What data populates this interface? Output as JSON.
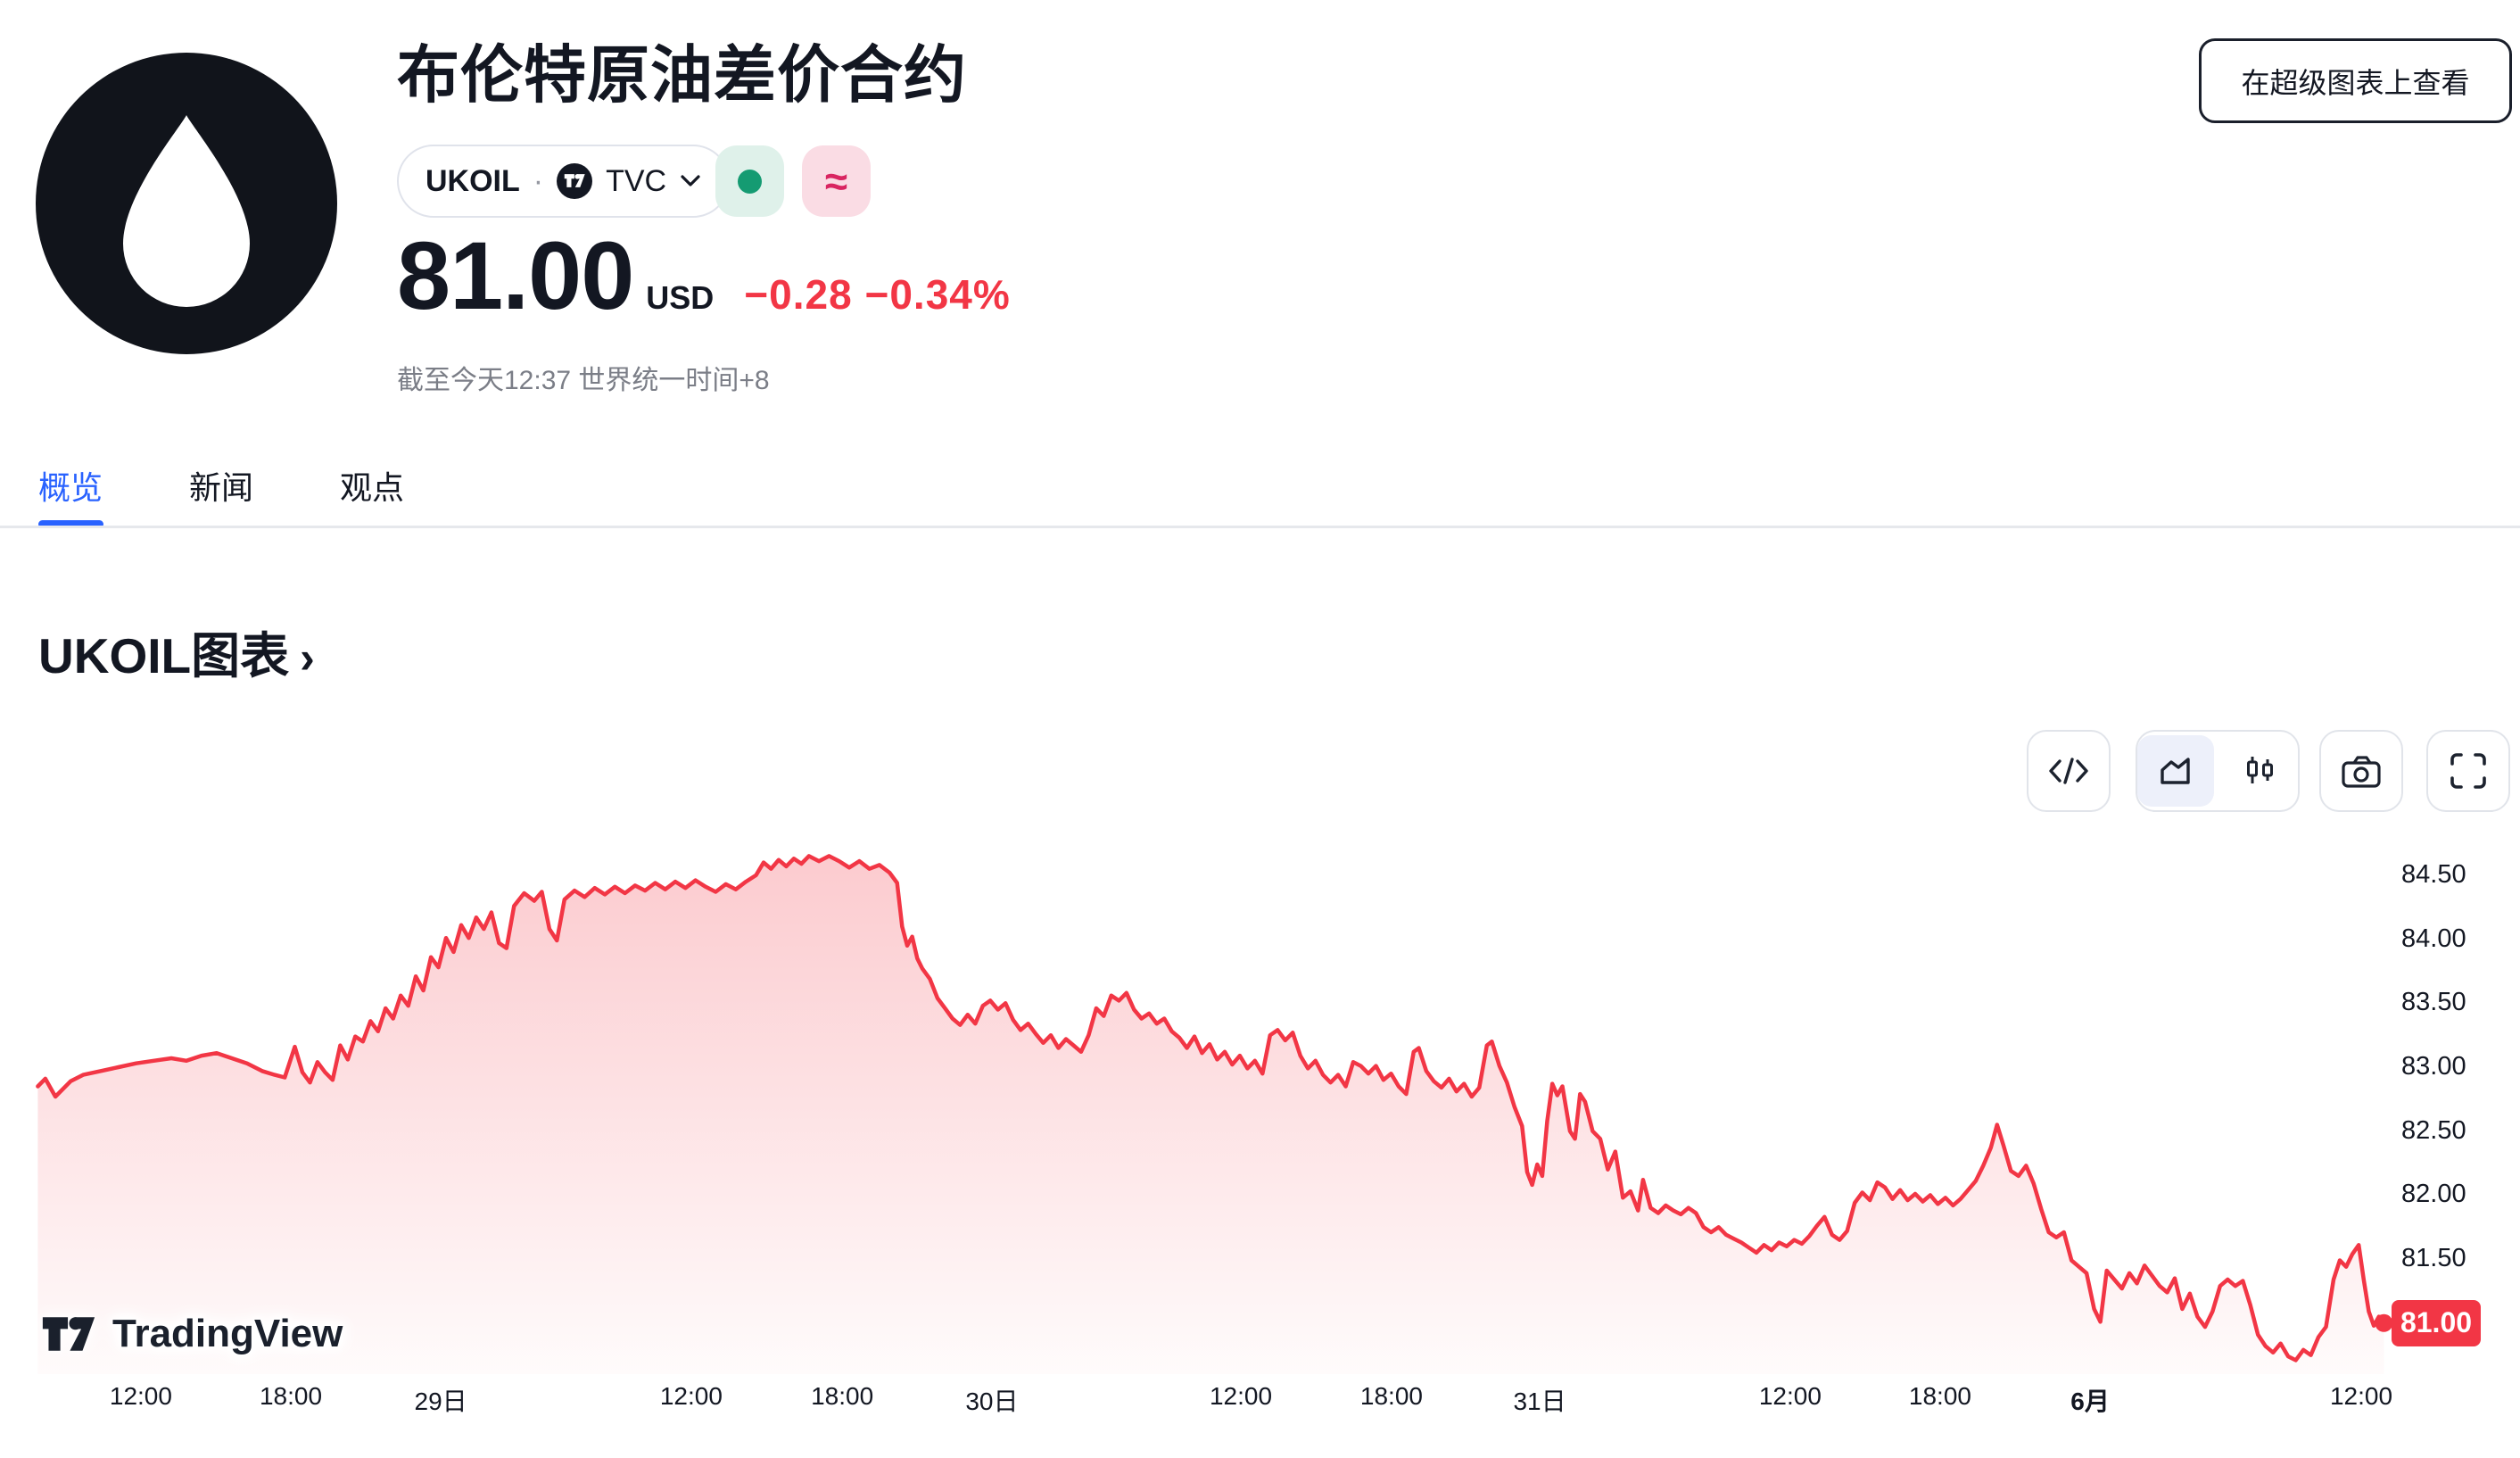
{
  "header": {
    "title": "布伦特原油差价合约",
    "view_button": "在超级图表上查看",
    "symbol_chip": {
      "code": "UKOIL",
      "separator": "·",
      "source": "TVC"
    },
    "badges": {
      "market_dot_color": "#159B72",
      "approx_symbol": "≈"
    },
    "price": {
      "value": "81.00",
      "currency": "USD",
      "change": "−0.28",
      "change_percent": "−0.34%",
      "change_color": "#F23645"
    },
    "as_of": "截至今天12:37 世界统一时间+8"
  },
  "tabs": [
    {
      "label": "概览",
      "active": true
    },
    {
      "label": "新闻",
      "active": false
    },
    {
      "label": "观点",
      "active": false
    }
  ],
  "section": {
    "title": "UKOIL图表",
    "chevron": "›"
  },
  "toolbar": {
    "icons": [
      "code",
      "area-chart",
      "candlestick",
      "camera",
      "fullscreen"
    ],
    "active": "area-chart"
  },
  "watermark": "TradingView",
  "chart_data": {
    "type": "area",
    "symbol": "UKOIL",
    "currency": "USD",
    "line_color": "#F23645",
    "fill_top_color": "rgba(242,54,69,0.26)",
    "fill_bottom_color": "rgba(242,54,69,0.02)",
    "grid": false,
    "legend": "none",
    "last_price": 81.0,
    "last_price_label": "81.00",
    "y_axis_side": "right",
    "y_ticks": [
      84.5,
      84.0,
      83.5,
      83.0,
      82.5,
      82.0,
      81.5
    ],
    "ylim": [
      80.55,
      84.85
    ],
    "x_ticks": [
      {
        "label": "12:00",
        "pos": 0.0559,
        "bold": false
      },
      {
        "label": "18:00",
        "pos": 0.1154,
        "bold": false
      },
      {
        "label": "29日",
        "pos": 0.1749,
        "bold": false
      },
      {
        "label": "12:00",
        "pos": 0.2743,
        "bold": false
      },
      {
        "label": "18:00",
        "pos": 0.3342,
        "bold": false
      },
      {
        "label": "30日",
        "pos": 0.3936,
        "bold": false
      },
      {
        "label": "12:00",
        "pos": 0.4924,
        "bold": false
      },
      {
        "label": "18:00",
        "pos": 0.5522,
        "bold": false
      },
      {
        "label": "31日",
        "pos": 0.611,
        "bold": false
      },
      {
        "label": "12:00",
        "pos": 0.7104,
        "bold": false
      },
      {
        "label": "18:00",
        "pos": 0.7699,
        "bold": false
      },
      {
        "label": "6月",
        "pos": 0.8294,
        "bold": true
      },
      {
        "label": "12:00",
        "pos": 0.937,
        "bold": false
      }
    ],
    "series": [
      [
        0.015,
        82.85
      ],
      [
        0.018,
        82.91
      ],
      [
        0.022,
        82.77
      ],
      [
        0.028,
        82.89
      ],
      [
        0.033,
        82.94
      ],
      [
        0.04,
        82.97
      ],
      [
        0.047,
        83.0
      ],
      [
        0.054,
        83.03
      ],
      [
        0.061,
        83.05
      ],
      [
        0.068,
        83.07
      ],
      [
        0.074,
        83.05
      ],
      [
        0.08,
        83.09
      ],
      [
        0.086,
        83.11
      ],
      [
        0.092,
        83.07
      ],
      [
        0.098,
        83.03
      ],
      [
        0.104,
        82.97
      ],
      [
        0.109,
        82.94
      ],
      [
        0.113,
        82.92
      ],
      [
        0.117,
        83.16
      ],
      [
        0.12,
        82.96
      ],
      [
        0.123,
        82.88
      ],
      [
        0.126,
        83.04
      ],
      [
        0.129,
        82.96
      ],
      [
        0.132,
        82.9
      ],
      [
        0.135,
        83.17
      ],
      [
        0.138,
        83.06
      ],
      [
        0.141,
        83.24
      ],
      [
        0.144,
        83.2
      ],
      [
        0.147,
        83.36
      ],
      [
        0.15,
        83.28
      ],
      [
        0.153,
        83.46
      ],
      [
        0.156,
        83.38
      ],
      [
        0.159,
        83.56
      ],
      [
        0.162,
        83.48
      ],
      [
        0.165,
        83.71
      ],
      [
        0.168,
        83.6
      ],
      [
        0.171,
        83.86
      ],
      [
        0.174,
        83.78
      ],
      [
        0.177,
        84.01
      ],
      [
        0.18,
        83.9
      ],
      [
        0.183,
        84.11
      ],
      [
        0.186,
        84.01
      ],
      [
        0.189,
        84.17
      ],
      [
        0.192,
        84.08
      ],
      [
        0.195,
        84.21
      ],
      [
        0.198,
        83.97
      ],
      [
        0.201,
        83.93
      ],
      [
        0.204,
        84.26
      ],
      [
        0.208,
        84.36
      ],
      [
        0.212,
        84.3
      ],
      [
        0.215,
        84.37
      ],
      [
        0.218,
        84.08
      ],
      [
        0.221,
        83.99
      ],
      [
        0.224,
        84.31
      ],
      [
        0.228,
        84.38
      ],
      [
        0.232,
        84.33
      ],
      [
        0.236,
        84.4
      ],
      [
        0.24,
        84.35
      ],
      [
        0.244,
        84.41
      ],
      [
        0.248,
        84.36
      ],
      [
        0.252,
        84.42
      ],
      [
        0.256,
        84.38
      ],
      [
        0.26,
        84.44
      ],
      [
        0.264,
        84.39
      ],
      [
        0.268,
        84.45
      ],
      [
        0.272,
        84.4
      ],
      [
        0.276,
        84.46
      ],
      [
        0.28,
        84.41
      ],
      [
        0.284,
        84.37
      ],
      [
        0.288,
        84.43
      ],
      [
        0.292,
        84.39
      ],
      [
        0.296,
        84.45
      ],
      [
        0.3,
        84.5
      ],
      [
        0.303,
        84.6
      ],
      [
        0.306,
        84.55
      ],
      [
        0.309,
        84.62
      ],
      [
        0.312,
        84.57
      ],
      [
        0.315,
        84.63
      ],
      [
        0.318,
        84.59
      ],
      [
        0.321,
        84.65
      ],
      [
        0.325,
        84.61
      ],
      [
        0.329,
        84.65
      ],
      [
        0.333,
        84.61
      ],
      [
        0.337,
        84.56
      ],
      [
        0.341,
        84.61
      ],
      [
        0.345,
        84.55
      ],
      [
        0.349,
        84.58
      ],
      [
        0.353,
        84.52
      ],
      [
        0.356,
        84.44
      ],
      [
        0.358,
        84.1
      ],
      [
        0.36,
        83.95
      ],
      [
        0.362,
        84.02
      ],
      [
        0.364,
        83.85
      ],
      [
        0.366,
        83.77
      ],
      [
        0.369,
        83.69
      ],
      [
        0.372,
        83.54
      ],
      [
        0.375,
        83.46
      ],
      [
        0.378,
        83.38
      ],
      [
        0.381,
        83.33
      ],
      [
        0.384,
        83.41
      ],
      [
        0.387,
        83.34
      ],
      [
        0.39,
        83.48
      ],
      [
        0.393,
        83.52
      ],
      [
        0.396,
        83.45
      ],
      [
        0.399,
        83.5
      ],
      [
        0.402,
        83.37
      ],
      [
        0.405,
        83.29
      ],
      [
        0.408,
        83.34
      ],
      [
        0.411,
        83.26
      ],
      [
        0.414,
        83.19
      ],
      [
        0.417,
        83.25
      ],
      [
        0.42,
        83.15
      ],
      [
        0.423,
        83.22
      ],
      [
        0.426,
        83.17
      ],
      [
        0.429,
        83.12
      ],
      [
        0.432,
        83.25
      ],
      [
        0.435,
        83.46
      ],
      [
        0.438,
        83.4
      ],
      [
        0.441,
        83.56
      ],
      [
        0.444,
        83.52
      ],
      [
        0.447,
        83.58
      ],
      [
        0.45,
        83.45
      ],
      [
        0.453,
        83.38
      ],
      [
        0.456,
        83.42
      ],
      [
        0.459,
        83.34
      ],
      [
        0.462,
        83.38
      ],
      [
        0.465,
        83.28
      ],
      [
        0.468,
        83.23
      ],
      [
        0.471,
        83.15
      ],
      [
        0.474,
        83.24
      ],
      [
        0.477,
        83.11
      ],
      [
        0.48,
        83.18
      ],
      [
        0.483,
        83.06
      ],
      [
        0.486,
        83.12
      ],
      [
        0.489,
        83.02
      ],
      [
        0.492,
        83.09
      ],
      [
        0.495,
        82.99
      ],
      [
        0.498,
        83.05
      ],
      [
        0.501,
        82.95
      ],
      [
        0.504,
        83.25
      ],
      [
        0.507,
        83.29
      ],
      [
        0.51,
        83.21
      ],
      [
        0.513,
        83.27
      ],
      [
        0.516,
        83.09
      ],
      [
        0.519,
        82.99
      ],
      [
        0.522,
        83.05
      ],
      [
        0.525,
        82.94
      ],
      [
        0.528,
        82.88
      ],
      [
        0.531,
        82.94
      ],
      [
        0.534,
        82.85
      ],
      [
        0.537,
        83.04
      ],
      [
        0.54,
        83.01
      ],
      [
        0.543,
        82.95
      ],
      [
        0.546,
        83.01
      ],
      [
        0.549,
        82.9
      ],
      [
        0.552,
        82.95
      ],
      [
        0.555,
        82.85
      ],
      [
        0.558,
        82.79
      ],
      [
        0.561,
        83.12
      ],
      [
        0.563,
        83.15
      ],
      [
        0.566,
        82.97
      ],
      [
        0.569,
        82.89
      ],
      [
        0.572,
        82.84
      ],
      [
        0.575,
        82.91
      ],
      [
        0.578,
        82.81
      ],
      [
        0.581,
        82.87
      ],
      [
        0.584,
        82.77
      ],
      [
        0.587,
        82.84
      ],
      [
        0.59,
        83.17
      ],
      [
        0.592,
        83.2
      ],
      [
        0.595,
        83.01
      ],
      [
        0.598,
        82.88
      ],
      [
        0.601,
        82.69
      ],
      [
        0.604,
        82.54
      ],
      [
        0.606,
        82.18
      ],
      [
        0.608,
        82.08
      ],
      [
        0.61,
        82.24
      ],
      [
        0.612,
        82.15
      ],
      [
        0.614,
        82.58
      ],
      [
        0.616,
        82.87
      ],
      [
        0.618,
        82.78
      ],
      [
        0.62,
        82.85
      ],
      [
        0.623,
        82.5
      ],
      [
        0.625,
        82.44
      ],
      [
        0.627,
        82.79
      ],
      [
        0.629,
        82.73
      ],
      [
        0.632,
        82.5
      ],
      [
        0.635,
        82.44
      ],
      [
        0.638,
        82.2
      ],
      [
        0.641,
        82.34
      ],
      [
        0.644,
        81.98
      ],
      [
        0.647,
        82.03
      ],
      [
        0.65,
        81.88
      ],
      [
        0.652,
        82.12
      ],
      [
        0.655,
        81.9
      ],
      [
        0.658,
        81.86
      ],
      [
        0.661,
        81.92
      ],
      [
        0.664,
        81.88
      ],
      [
        0.667,
        81.85
      ],
      [
        0.67,
        81.9
      ],
      [
        0.673,
        81.86
      ],
      [
        0.676,
        81.75
      ],
      [
        0.679,
        81.71
      ],
      [
        0.682,
        81.75
      ],
      [
        0.685,
        81.69
      ],
      [
        0.688,
        81.66
      ],
      [
        0.691,
        81.63
      ],
      [
        0.694,
        81.59
      ],
      [
        0.697,
        81.55
      ],
      [
        0.7,
        81.61
      ],
      [
        0.703,
        81.57
      ],
      [
        0.706,
        81.63
      ],
      [
        0.709,
        81.6
      ],
      [
        0.712,
        81.65
      ],
      [
        0.715,
        81.62
      ],
      [
        0.718,
        81.68
      ],
      [
        0.721,
        81.76
      ],
      [
        0.724,
        81.83
      ],
      [
        0.727,
        81.69
      ],
      [
        0.73,
        81.65
      ],
      [
        0.733,
        81.72
      ],
      [
        0.736,
        81.94
      ],
      [
        0.739,
        82.02
      ],
      [
        0.742,
        81.96
      ],
      [
        0.745,
        82.1
      ],
      [
        0.748,
        82.06
      ],
      [
        0.751,
        81.97
      ],
      [
        0.754,
        82.04
      ],
      [
        0.757,
        81.96
      ],
      [
        0.76,
        82.01
      ],
      [
        0.763,
        81.95
      ],
      [
        0.766,
        82.0
      ],
      [
        0.769,
        81.93
      ],
      [
        0.772,
        81.98
      ],
      [
        0.775,
        81.92
      ],
      [
        0.778,
        81.97
      ],
      [
        0.781,
        82.04
      ],
      [
        0.784,
        82.11
      ],
      [
        0.787,
        82.23
      ],
      [
        0.79,
        82.37
      ],
      [
        0.7925,
        82.55
      ],
      [
        0.795,
        82.39
      ],
      [
        0.798,
        82.19
      ],
      [
        0.801,
        82.15
      ],
      [
        0.804,
        82.23
      ],
      [
        0.807,
        82.09
      ],
      [
        0.81,
        81.89
      ],
      [
        0.813,
        81.71
      ],
      [
        0.816,
        81.67
      ],
      [
        0.819,
        81.71
      ],
      [
        0.822,
        81.49
      ],
      [
        0.825,
        81.44
      ],
      [
        0.828,
        81.39
      ],
      [
        0.831,
        81.11
      ],
      [
        0.8335,
        81.01
      ],
      [
        0.836,
        81.41
      ],
      [
        0.839,
        81.34
      ],
      [
        0.842,
        81.27
      ],
      [
        0.845,
        81.39
      ],
      [
        0.848,
        81.31
      ],
      [
        0.851,
        81.45
      ],
      [
        0.854,
        81.37
      ],
      [
        0.857,
        81.29
      ],
      [
        0.86,
        81.24
      ],
      [
        0.863,
        81.35
      ],
      [
        0.866,
        81.11
      ],
      [
        0.869,
        81.23
      ],
      [
        0.872,
        81.05
      ],
      [
        0.875,
        80.97
      ],
      [
        0.878,
        81.09
      ],
      [
        0.881,
        81.29
      ],
      [
        0.884,
        81.34
      ],
      [
        0.887,
        81.29
      ],
      [
        0.89,
        81.33
      ],
      [
        0.893,
        81.14
      ],
      [
        0.896,
        80.91
      ],
      [
        0.899,
        80.82
      ],
      [
        0.902,
        80.77
      ],
      [
        0.905,
        80.84
      ],
      [
        0.908,
        80.74
      ],
      [
        0.911,
        80.71
      ],
      [
        0.914,
        80.79
      ],
      [
        0.917,
        80.75
      ],
      [
        0.92,
        80.89
      ],
      [
        0.923,
        80.97
      ],
      [
        0.926,
        81.34
      ],
      [
        0.9285,
        81.49
      ],
      [
        0.931,
        81.44
      ],
      [
        0.9335,
        81.54
      ],
      [
        0.936,
        81.61
      ],
      [
        0.938,
        81.34
      ],
      [
        0.94,
        81.09
      ],
      [
        0.942,
        80.98
      ],
      [
        0.944,
        81.05
      ],
      [
        0.946,
        81.0
      ]
    ]
  }
}
